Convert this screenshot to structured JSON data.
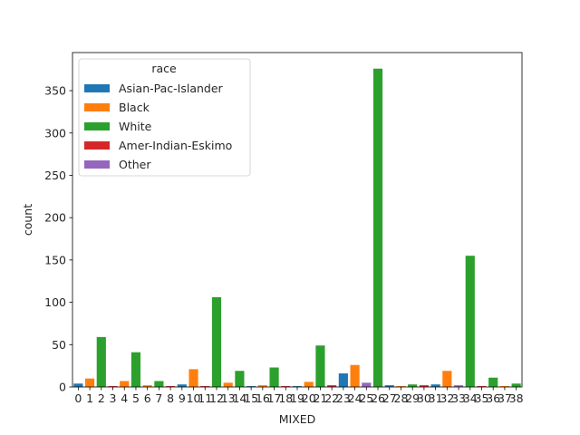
{
  "chart_data": {
    "type": "bar",
    "xlabel": "MIXED",
    "ylabel": "count",
    "ylim": [
      0,
      395
    ],
    "yticks": [
      0,
      50,
      100,
      150,
      200,
      250,
      300,
      350
    ],
    "categories": [
      "0",
      "1",
      "2",
      "3",
      "4",
      "5",
      "6",
      "7",
      "8",
      "9",
      "10",
      "11",
      "12",
      "13",
      "14",
      "15",
      "16",
      "17",
      "18",
      "19",
      "20",
      "21",
      "22",
      "23",
      "24",
      "25",
      "26",
      "27",
      "28",
      "29",
      "30",
      "31",
      "32",
      "33",
      "34",
      "35",
      "36",
      "37",
      "38"
    ],
    "grid": false,
    "legend": {
      "title": "race",
      "placement": "top-left",
      "entries": [
        {
          "name": "Asian-Pac-Islander",
          "color": "#1f77b4"
        },
        {
          "name": "Black",
          "color": "#ff7f0e"
        },
        {
          "name": "White",
          "color": "#2ca02c"
        },
        {
          "name": "Amer-Indian-Eskimo",
          "color": "#d62728"
        },
        {
          "name": "Other",
          "color": "#9467bd"
        }
      ]
    },
    "bars": [
      {
        "x": "0",
        "race": "Asian-Pac-Islander",
        "value": 4
      },
      {
        "x": "1",
        "race": "Black",
        "value": 10
      },
      {
        "x": "2",
        "race": "White",
        "value": 59
      },
      {
        "x": "3",
        "race": "Amer-Indian-Eskimo",
        "value": 1
      },
      {
        "x": "4",
        "race": "Black",
        "value": 7
      },
      {
        "x": "5",
        "race": "White",
        "value": 41
      },
      {
        "x": "6",
        "race": "Black",
        "value": 2
      },
      {
        "x": "7",
        "race": "White",
        "value": 7
      },
      {
        "x": "8",
        "race": "Amer-Indian-Eskimo",
        "value": 1
      },
      {
        "x": "9",
        "race": "Asian-Pac-Islander",
        "value": 3
      },
      {
        "x": "10",
        "race": "Black",
        "value": 21
      },
      {
        "x": "11",
        "race": "Amer-Indian-Eskimo",
        "value": 1
      },
      {
        "x": "12",
        "race": "White",
        "value": 106
      },
      {
        "x": "13",
        "race": "Black",
        "value": 5
      },
      {
        "x": "14",
        "race": "White",
        "value": 19
      },
      {
        "x": "15",
        "race": "Asian-Pac-Islander",
        "value": 1
      },
      {
        "x": "16",
        "race": "Black",
        "value": 2
      },
      {
        "x": "17",
        "race": "White",
        "value": 23
      },
      {
        "x": "18",
        "race": "Amer-Indian-Eskimo",
        "value": 1
      },
      {
        "x": "19",
        "race": "Asian-Pac-Islander",
        "value": 1
      },
      {
        "x": "20",
        "race": "Black",
        "value": 6
      },
      {
        "x": "21",
        "race": "White",
        "value": 49
      },
      {
        "x": "22",
        "race": "Amer-Indian-Eskimo",
        "value": 2
      },
      {
        "x": "23",
        "race": "Asian-Pac-Islander",
        "value": 16
      },
      {
        "x": "24",
        "race": "Black",
        "value": 26
      },
      {
        "x": "25",
        "race": "Other",
        "value": 5
      },
      {
        "x": "26",
        "race": "White",
        "value": 376
      },
      {
        "x": "27",
        "race": "Asian-Pac-Islander",
        "value": 2
      },
      {
        "x": "28",
        "race": "Black",
        "value": 1
      },
      {
        "x": "29",
        "race": "White",
        "value": 3
      },
      {
        "x": "30",
        "race": "Amer-Indian-Eskimo",
        "value": 2
      },
      {
        "x": "31",
        "race": "Asian-Pac-Islander",
        "value": 3
      },
      {
        "x": "32",
        "race": "Black",
        "value": 19
      },
      {
        "x": "33",
        "race": "Other",
        "value": 2
      },
      {
        "x": "34",
        "race": "White",
        "value": 155
      },
      {
        "x": "35",
        "race": "Amer-Indian-Eskimo",
        "value": 1
      },
      {
        "x": "36",
        "race": "White",
        "value": 11
      },
      {
        "x": "37",
        "race": "Black",
        "value": 1
      },
      {
        "x": "38",
        "race": "White",
        "value": 4
      }
    ]
  }
}
